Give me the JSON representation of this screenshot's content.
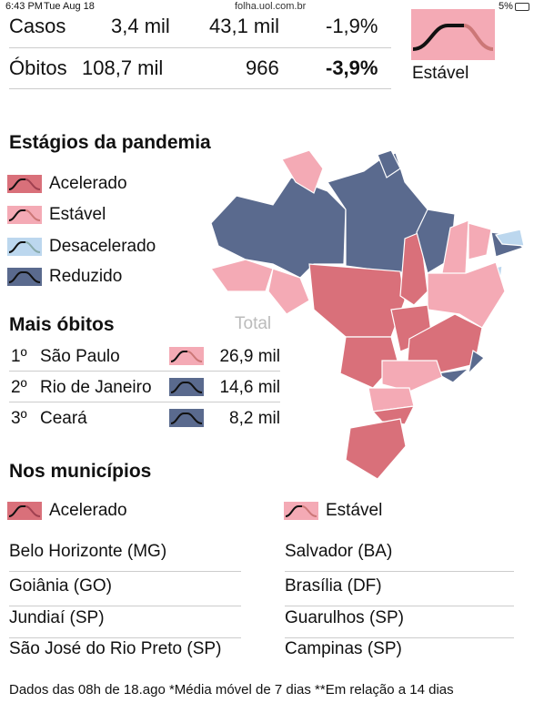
{
  "status_bar": {
    "time": "6:43 PM",
    "date": "Tue Aug 18",
    "url": "folha.uol.com.br",
    "battery": "5%"
  },
  "summary": {
    "rows": [
      [
        "Casos",
        "3,4 mil",
        "43,1 mil",
        "-1,9%"
      ],
      [
        "Óbitos",
        "108,7 mil",
        "966",
        "-3,9%"
      ]
    ],
    "stage": "Estável"
  },
  "stages": {
    "title": "Estágios da pandemia",
    "legend": [
      "Acelerado",
      "Estável",
      "Desacelerado",
      "Reduzido"
    ]
  },
  "deaths": {
    "title": "Mais óbitos",
    "total_header": "Total",
    "rows": [
      {
        "rank": "1º",
        "state": "São Paulo",
        "total": "26,9 mil"
      },
      {
        "rank": "2º",
        "state": "Rio de Janeiro",
        "total": "14,6 mil"
      },
      {
        "rank": "3º",
        "state": "Ceará",
        "total": "8,2 mil"
      }
    ]
  },
  "municipalities": {
    "title": "Nos municípios",
    "columns": [
      {
        "stage": "Acelerado",
        "cities": [
          "Belo Horizonte (MG)",
          "Goiânia (GO)",
          "Jundiaí (SP)",
          "São José do Rio Preto (SP)"
        ]
      },
      {
        "stage": "Estável",
        "cities": [
          "Salvador (BA)",
          "Brasília (DF)",
          "Guarulhos (SP)",
          "Campinas (SP)"
        ]
      }
    ]
  },
  "footnote": "Dados das 08h de 18.ago *Média móvel de 7 dias **Em relação a 14 dias"
}
